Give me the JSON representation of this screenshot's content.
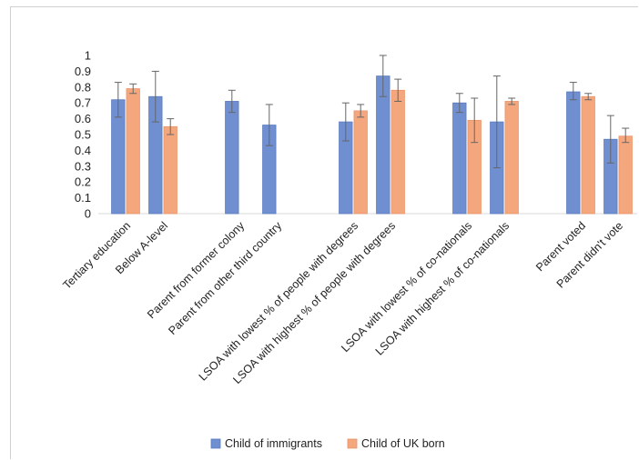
{
  "chart_data": {
    "type": "bar",
    "title": "",
    "xlabel": "",
    "ylabel": "",
    "ylim": [
      0,
      1
    ],
    "yticks": [
      "0",
      "0.1",
      "0.2",
      "0.3",
      "0.4",
      "0.5",
      "0.6",
      "0.7",
      "0.8",
      "0.9",
      "1"
    ],
    "categories": [
      "Tertiary education",
      "Below A-level",
      "Parent from former colony",
      "Parent from other third country",
      "LSOA with lowest % of people with degrees",
      "LSOA with highest % of people with degrees",
      "LSOA with lowest % of co-nationals",
      "LSOA with highest % of co-nationals",
      "Parent voted",
      "Parent didn't vote"
    ],
    "series": [
      {
        "name": "Child of immigrants",
        "color": "#6f8fd0",
        "values": [
          0.72,
          0.74,
          0.71,
          0.56,
          0.58,
          0.87,
          0.7,
          0.58,
          0.77,
          0.47
        ],
        "error_low": [
          0.61,
          0.58,
          0.64,
          0.43,
          0.46,
          0.74,
          0.64,
          0.29,
          0.72,
          0.32
        ],
        "error_high": [
          0.83,
          0.9,
          0.78,
          0.69,
          0.7,
          1.0,
          0.76,
          0.87,
          0.83,
          0.62
        ]
      },
      {
        "name": "Child of UK born",
        "color": "#f4a77d",
        "values": [
          0.79,
          0.55,
          null,
          null,
          0.65,
          0.78,
          0.59,
          0.71,
          0.74,
          0.49
        ],
        "error_low": [
          0.76,
          0.5,
          null,
          null,
          0.61,
          0.71,
          0.45,
          0.69,
          0.72,
          0.45
        ],
        "error_high": [
          0.82,
          0.6,
          null,
          null,
          0.69,
          0.85,
          0.73,
          0.73,
          0.76,
          0.54
        ]
      }
    ],
    "legend_position": "bottom",
    "grid": false
  }
}
